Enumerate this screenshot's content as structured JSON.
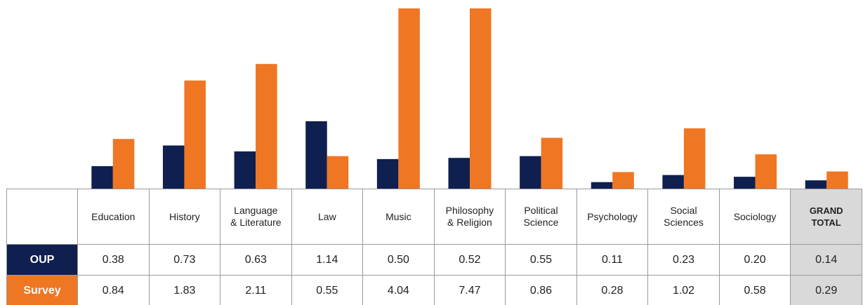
{
  "chart_data": {
    "type": "bar",
    "categories": [
      "Education",
      "History",
      "Language\n& Literature",
      "Law",
      "Music",
      "Philosophy\n& Religion",
      "Political\nScience",
      "Psychology",
      "Social\nSciences",
      "Sociology",
      "GRAND\nTOTAL"
    ],
    "series": [
      {
        "name": "OUP",
        "color": "#0f1f4f",
        "values": [
          0.38,
          0.73,
          0.63,
          1.14,
          0.5,
          0.52,
          0.55,
          0.11,
          0.23,
          0.2,
          0.14
        ],
        "value_labels": [
          "0.38",
          "0.73",
          "0.63",
          "1.14",
          "0.50",
          "0.52",
          "0.55",
          "0.11",
          "0.23",
          "0.20",
          "0.14"
        ]
      },
      {
        "name": "Survey",
        "color": "#ef7622",
        "values": [
          0.84,
          1.83,
          2.11,
          0.55,
          4.04,
          7.47,
          0.86,
          0.28,
          1.02,
          0.58,
          0.29
        ],
        "value_labels": [
          "0.84",
          "1.83",
          "2.11",
          "0.55",
          "4.04",
          "7.47",
          "0.86",
          "0.28",
          "1.02",
          "0.58",
          "0.29"
        ]
      }
    ],
    "ylim": [
      0,
      3.05
    ]
  }
}
